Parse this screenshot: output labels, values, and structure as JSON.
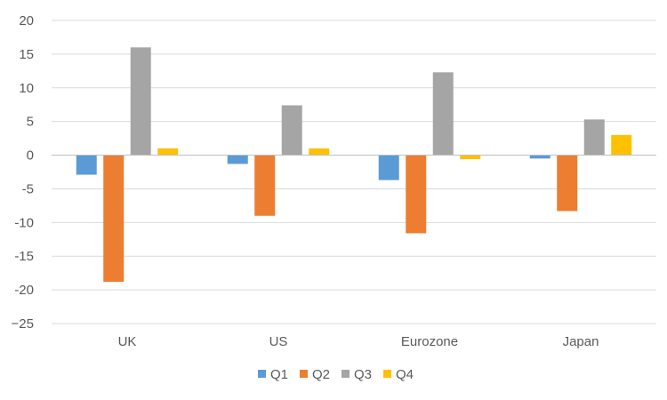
{
  "chart_data": {
    "type": "bar",
    "categories": [
      "UK",
      "US",
      "Eurozone",
      "Japan"
    ],
    "series": [
      {
        "name": "Q1",
        "color": "#5B9BD5",
        "values": [
          -2.9,
          -1.3,
          -3.7,
          -0.5
        ]
      },
      {
        "name": "Q2",
        "color": "#ED7D31",
        "values": [
          -18.8,
          -9.0,
          -11.6,
          -8.3
        ]
      },
      {
        "name": "Q3",
        "color": "#A5A5A5",
        "values": [
          16.0,
          7.4,
          12.3,
          5.3
        ]
      },
      {
        "name": "Q4",
        "color": "#FFC000",
        "values": [
          1.0,
          1.0,
          -0.6,
          3.0
        ]
      }
    ],
    "ylim": [
      -25,
      20
    ],
    "yticks": [
      20,
      15,
      10,
      5,
      0,
      -5,
      -10,
      -15,
      -20,
      -25
    ],
    "ytick_labels": [
      "20",
      "15",
      "10",
      "5",
      "0",
      "-5",
      "-10",
      "-15",
      "-20",
      "−25"
    ],
    "grid": true,
    "legend": "bottom",
    "title": "",
    "xlabel": "",
    "ylabel": ""
  }
}
